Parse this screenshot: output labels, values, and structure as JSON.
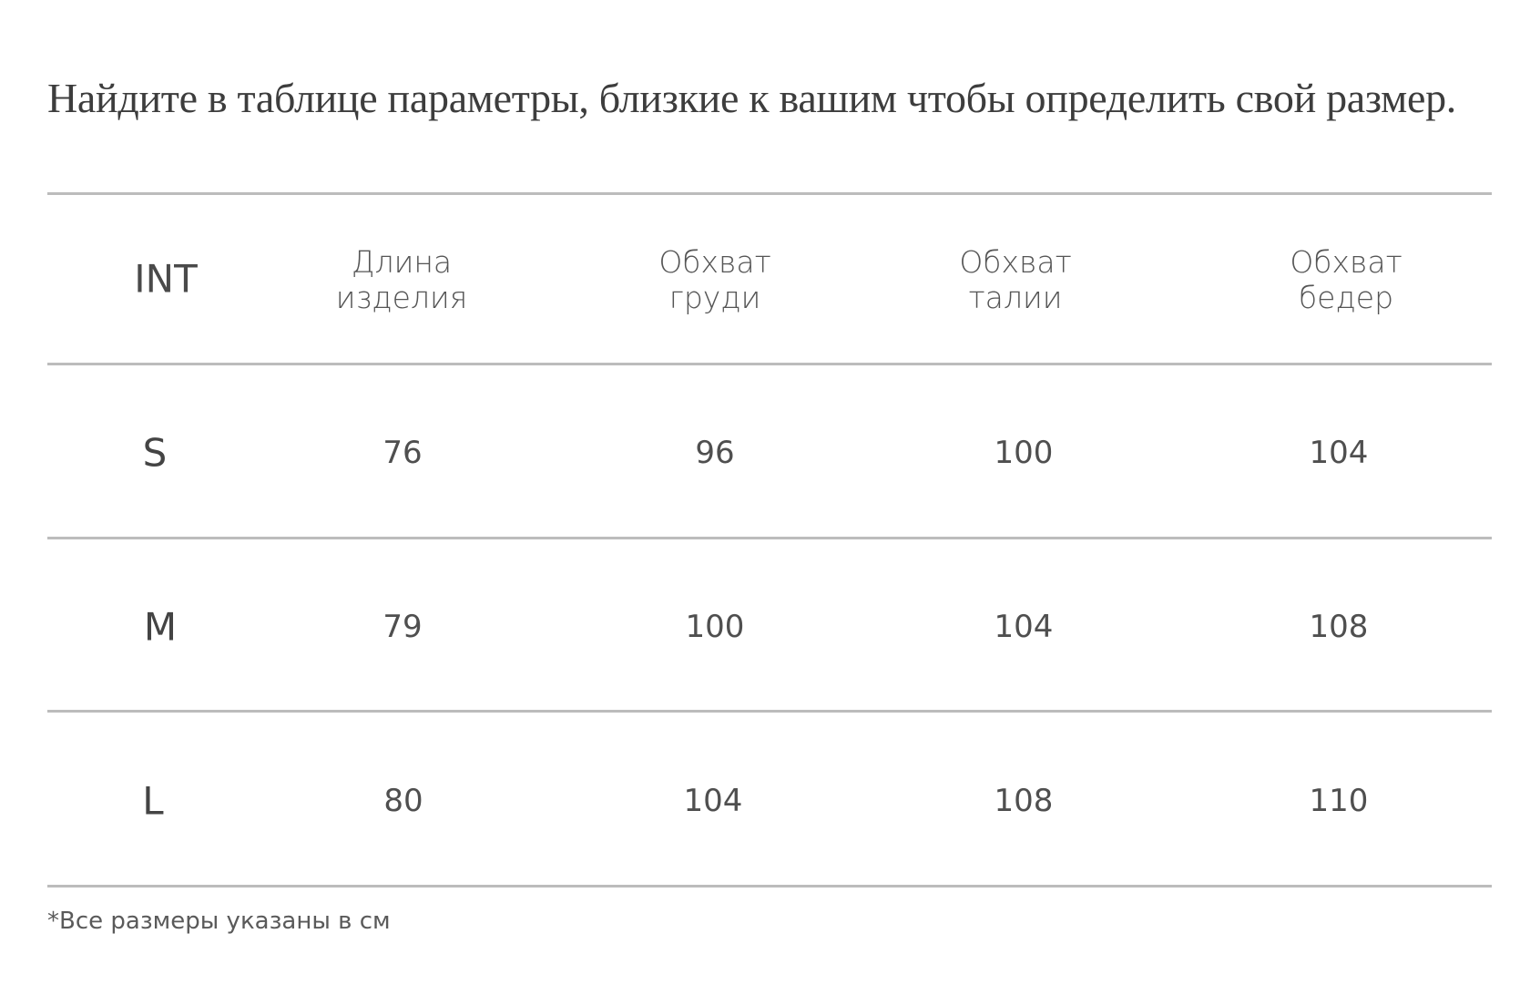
{
  "heading": "Найдите в таблице параметры, близкие к вашим чтобы определить свой размер.",
  "table": {
    "columns": [
      {
        "line1": "INT",
        "line2": ""
      },
      {
        "line1": "Длина",
        "line2": "изделия"
      },
      {
        "line1": "Обхват",
        "line2": "груди"
      },
      {
        "line1": "Обхват",
        "line2": "талии"
      },
      {
        "line1": "Обхват",
        "line2": "бедер"
      }
    ],
    "rows": [
      {
        "size": "S",
        "length": "76",
        "chest": "96",
        "waist": "100",
        "hips": "104"
      },
      {
        "size": "M",
        "length": "79",
        "chest": "100",
        "waist": "104",
        "hips": "108"
      },
      {
        "size": "L",
        "length": "80",
        "chest": "104",
        "waist": "108",
        "hips": "110"
      }
    ]
  },
  "footnote": "*Все размеры указаны в см"
}
